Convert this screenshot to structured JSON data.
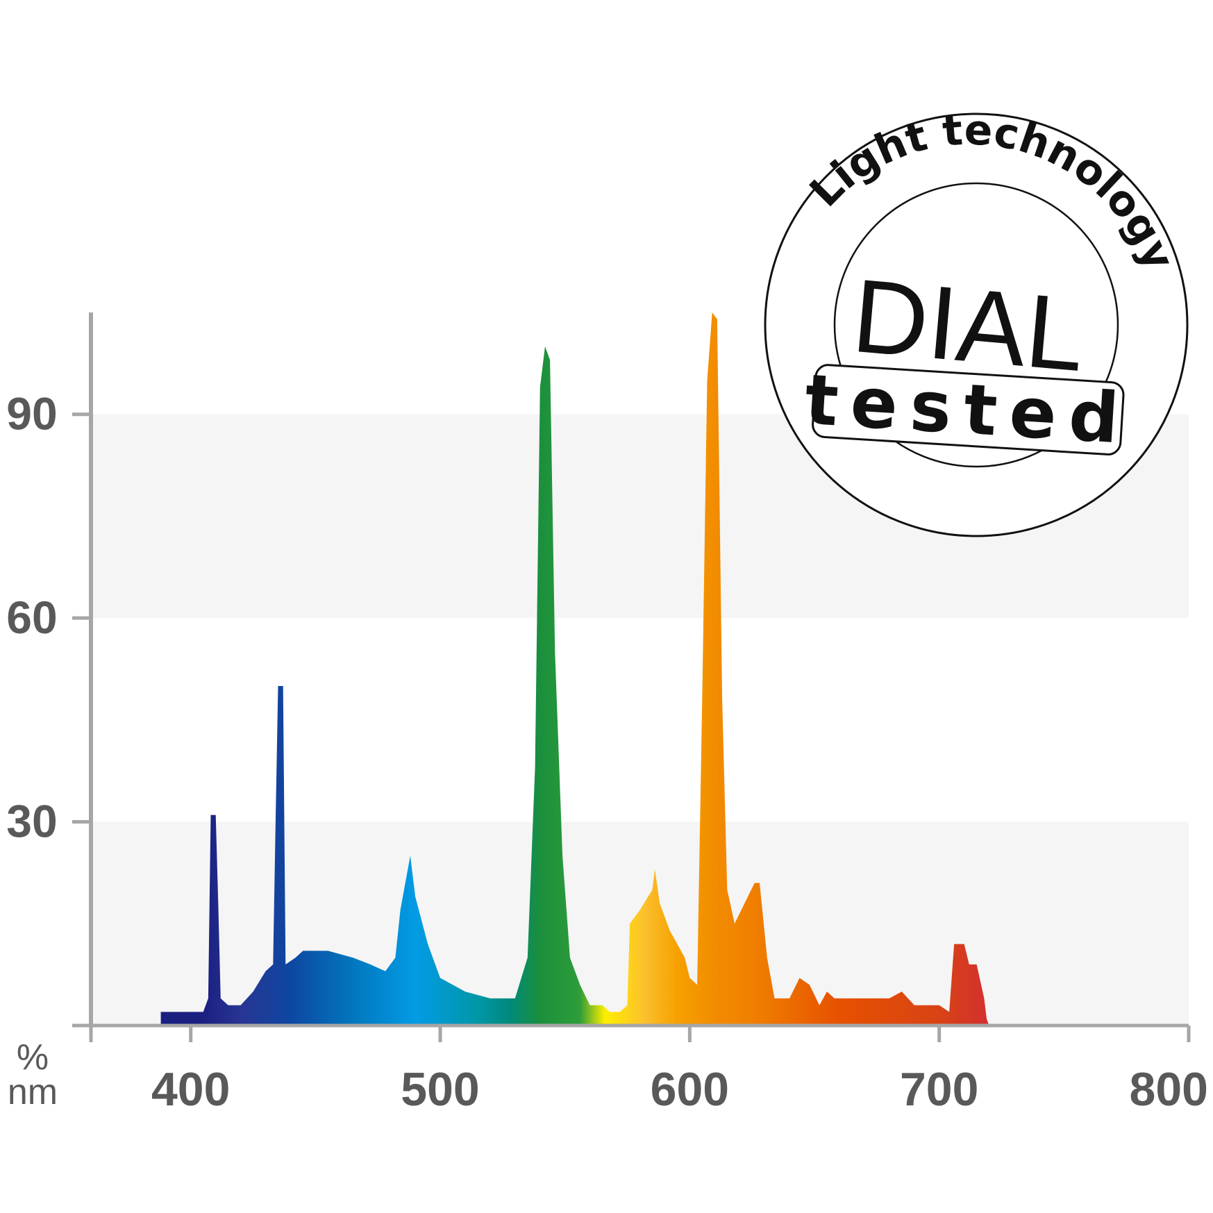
{
  "chart_data": {
    "type": "area",
    "title": "",
    "xlabel": "nm",
    "ylabel": "%",
    "xlim": [
      360,
      800
    ],
    "ylim": [
      0,
      105
    ],
    "x_ticks": [
      400,
      500,
      600,
      700,
      800
    ],
    "y_ticks": [
      30,
      60,
      90
    ],
    "grid_bands": [
      [
        0,
        30
      ],
      [
        60,
        90
      ]
    ],
    "series": [
      {
        "name": "spectrum",
        "points": [
          [
            388,
            2
          ],
          [
            405,
            2
          ],
          [
            407,
            4
          ],
          [
            408,
            31
          ],
          [
            410,
            31
          ],
          [
            411,
            18
          ],
          [
            412,
            4
          ],
          [
            415,
            3
          ],
          [
            420,
            3
          ],
          [
            425,
            5
          ],
          [
            430,
            8
          ],
          [
            433,
            9
          ],
          [
            434,
            30
          ],
          [
            435,
            50
          ],
          [
            437,
            50
          ],
          [
            438,
            9
          ],
          [
            442,
            10
          ],
          [
            445,
            11
          ],
          [
            455,
            11
          ],
          [
            465,
            10
          ],
          [
            472,
            9
          ],
          [
            478,
            8
          ],
          [
            482,
            10
          ],
          [
            484,
            17
          ],
          [
            486,
            21
          ],
          [
            488,
            25
          ],
          [
            490,
            19
          ],
          [
            495,
            12
          ],
          [
            500,
            7
          ],
          [
            510,
            5
          ],
          [
            520,
            4
          ],
          [
            530,
            4
          ],
          [
            535,
            10
          ],
          [
            538,
            38
          ],
          [
            540,
            94
          ],
          [
            542,
            100
          ],
          [
            544,
            98
          ],
          [
            546,
            55
          ],
          [
            549,
            25
          ],
          [
            552,
            10
          ],
          [
            556,
            6
          ],
          [
            560,
            3
          ],
          [
            565,
            3
          ],
          [
            568,
            2
          ],
          [
            572,
            2
          ],
          [
            575,
            3
          ],
          [
            576,
            15
          ],
          [
            580,
            17
          ],
          [
            585,
            20
          ],
          [
            586,
            23
          ],
          [
            588,
            18
          ],
          [
            592,
            14
          ],
          [
            598,
            10
          ],
          [
            600,
            7
          ],
          [
            603,
            6
          ],
          [
            605,
            48
          ],
          [
            607,
            95
          ],
          [
            609,
            105
          ],
          [
            611,
            104
          ],
          [
            613,
            48
          ],
          [
            615,
            20
          ],
          [
            618,
            15
          ],
          [
            622,
            18
          ],
          [
            626,
            21
          ],
          [
            628,
            21
          ],
          [
            631,
            10
          ],
          [
            634,
            4
          ],
          [
            640,
            4
          ],
          [
            644,
            7
          ],
          [
            648,
            6
          ],
          [
            652,
            3
          ],
          [
            655,
            5
          ],
          [
            658,
            4
          ],
          [
            665,
            4
          ],
          [
            675,
            4
          ],
          [
            680,
            4
          ],
          [
            685,
            5
          ],
          [
            690,
            3
          ],
          [
            700,
            3
          ],
          [
            704,
            2
          ],
          [
            706,
            12
          ],
          [
            710,
            12
          ],
          [
            712,
            9
          ],
          [
            715,
            9
          ],
          [
            718,
            4
          ],
          [
            719,
            1
          ],
          [
            720,
            0
          ]
        ]
      }
    ],
    "color_stops": [
      [
        "#1a237e",
        0
      ],
      [
        "#1a1f80",
        405
      ],
      [
        "#283593",
        420
      ],
      [
        "#0d47a1",
        440
      ],
      [
        "#0277bd",
        465
      ],
      [
        "#039be5",
        490
      ],
      [
        "#0097a7",
        515
      ],
      [
        "#00897b",
        528
      ],
      [
        "#1b8f3c",
        540
      ],
      [
        "#2e9d3a",
        556
      ],
      [
        "#ffee00",
        566
      ],
      [
        "#fbc02d",
        582
      ],
      [
        "#f6a000",
        595
      ],
      [
        "#f28c00",
        610
      ],
      [
        "#ef7a00",
        630
      ],
      [
        "#e65100",
        660
      ],
      [
        "#d84315",
        700
      ],
      [
        "#d32f2f",
        720
      ]
    ]
  },
  "badge": {
    "arc_text": "Light technology",
    "brand": "DIAL",
    "label": "tested"
  },
  "colors": {
    "axis": "#a6a6a6",
    "band": "#f5f5f5",
    "tick_text": "#595959",
    "stamp": "#111111"
  }
}
